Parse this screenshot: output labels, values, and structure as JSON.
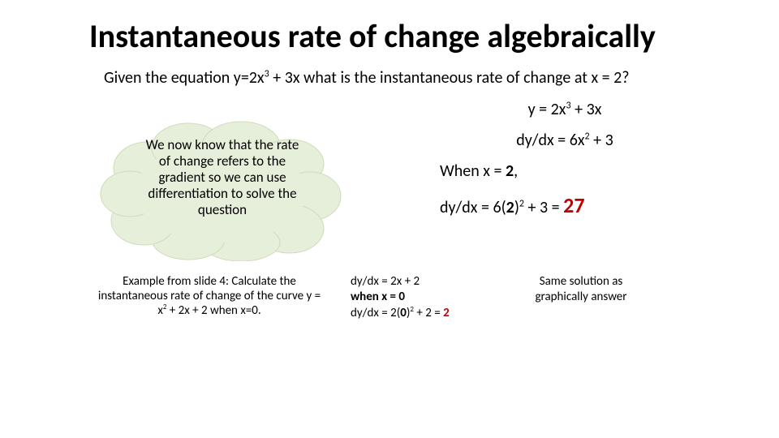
{
  "title": "Instantaneous rate of change algebraically",
  "problem_html": "Given the equation y=2x<sup>3</sup> + 3x what is the instantaneous rate of change at x = 2?",
  "cloud": {
    "text": "We now know that the rate of change refers to the gradient so we can use differentiation to solve the question",
    "fill": "#e6efd9",
    "stroke": "#d0dbbc",
    "font_size": 17
  },
  "work": {
    "lines_html": [
      "y = 2x<sup>3</sup> + 3x",
      "dy/dx = 6x<sup>2</sup> + 3",
      "When x = <span class=\"bold2\">2</span>,",
      "dy/dx = 6(<span class=\"bold2\">2</span>)<sup>2</sup> + 3 = <span class=\"ans27\">27</span>"
    ],
    "answer_color": "#c00000",
    "font_size": 20
  },
  "example4": {
    "prompt_html": "Example from slide 4: Calculate the instantaneous rate of change of the curve y = x<sup>2</sup> + 2x + 2 when x=0.",
    "work_html": "dy/dx = 2x + 2<br><span class=\"bold2\">when x = 0</span><br>dy/dx = 2(<span class=\"bold2\">0</span>)<sup>2</sup> + 2 = <span class=\"red2\">2</span>",
    "note": "Same solution as graphically answer",
    "font_size": 15
  },
  "colors": {
    "background": "#ffffff",
    "text": "#000000",
    "accent_red": "#c00000"
  }
}
